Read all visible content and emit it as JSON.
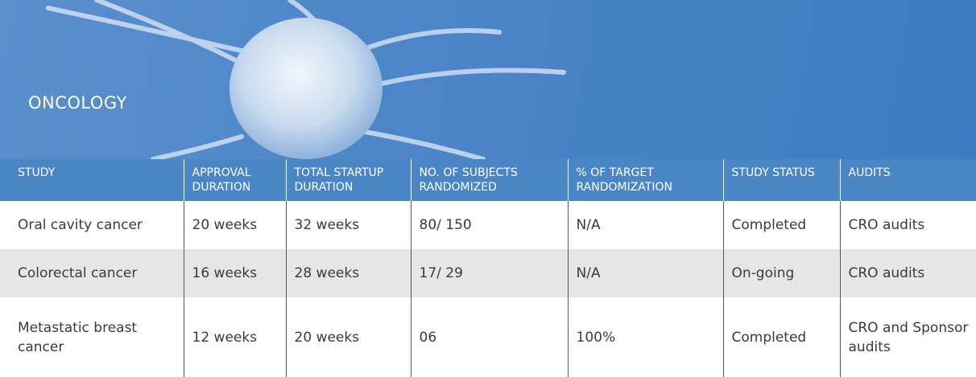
{
  "header": {
    "title": "ONCOLOGY"
  },
  "table": {
    "columns": [
      "STUDY",
      "APPROVAL DURATION",
      "TOTAL STARTUP DURATION",
      "NO. OF SUBJECTS RANDOMIZED",
      "% OF TARGET RANDOMIZATION",
      "STUDY STATUS",
      "AUDITS"
    ],
    "rows": [
      [
        "Oral cavity cancer",
        "20 weeks",
        "32 weeks",
        "80/ 150",
        "N/A",
        "Completed",
        "CRO audits"
      ],
      [
        "Colorectal cancer",
        "16 weeks",
        "28 weeks",
        "17/ 29",
        "N/A",
        "On-going",
        "CRO audits"
      ],
      [
        "Metastatic breast cancer",
        "12 weeks",
        "20 weeks",
        "06",
        "100%",
        "Completed",
        "CRO and Sponsor audits"
      ]
    ]
  }
}
